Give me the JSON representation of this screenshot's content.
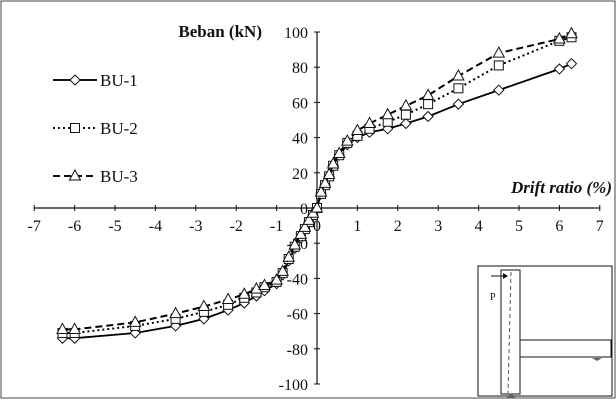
{
  "chart_data": {
    "type": "line",
    "ylabel": "Beban (kN)",
    "xlabel": "Drift ratio (%)",
    "xlim": [
      -7,
      7
    ],
    "ylim": [
      -100,
      100
    ],
    "xticks": [
      -7,
      -6,
      -5,
      -4,
      -3,
      -2,
      -1,
      0,
      1,
      2,
      3,
      4,
      5,
      6,
      7
    ],
    "yticks": [
      -100,
      -80,
      -60,
      -40,
      -20,
      0,
      20,
      40,
      60,
      80,
      100
    ],
    "tick_labels_x": [
      "-7",
      "-6",
      "-5",
      "-4",
      "-3",
      "-2",
      "-1",
      "0",
      "1",
      "2",
      "3",
      "4",
      "5",
      "6",
      "7"
    ],
    "tick_labels_y": [
      "-100",
      "-80",
      "-60",
      "-40",
      "-20",
      "0",
      "20",
      "40",
      "60",
      "80",
      "100"
    ],
    "grid": false,
    "legend_position": "left",
    "series": [
      {
        "name": "BU-1",
        "color": "#000000",
        "line_style": "solid",
        "marker": "diamond",
        "x": [
          -6.3,
          -6.0,
          -4.5,
          -3.5,
          -2.8,
          -2.2,
          -1.8,
          -1.5,
          -1.3,
          -1.0,
          -0.85,
          -0.7,
          -0.55,
          -0.4,
          -0.3,
          -0.2,
          -0.1,
          0,
          0.1,
          0.2,
          0.3,
          0.4,
          0.55,
          0.75,
          1.0,
          1.3,
          1.75,
          2.2,
          2.75,
          3.5,
          4.5,
          6.0,
          6.3
        ],
        "y": [
          -74,
          -74,
          -71,
          -67,
          -63,
          -58,
          -54,
          -50,
          -47,
          -43,
          -38,
          -30,
          -23,
          -17,
          -12,
          -8,
          -4,
          0,
          8,
          13,
          18,
          24,
          30,
          36,
          40,
          43,
          45,
          48,
          52,
          59,
          67,
          79,
          82
        ]
      },
      {
        "name": "BU-2",
        "color": "#000000",
        "line_style": "dotted",
        "marker": "square",
        "x": [
          -6.3,
          -6.0,
          -4.5,
          -3.5,
          -2.8,
          -2.2,
          -1.8,
          -1.5,
          -1.3,
          -1.0,
          -0.85,
          -0.7,
          -0.55,
          -0.4,
          -0.3,
          -0.2,
          -0.1,
          0,
          0.1,
          0.2,
          0.3,
          0.4,
          0.55,
          0.75,
          1.0,
          1.3,
          1.75,
          2.2,
          2.75,
          3.5,
          4.5,
          6.0,
          6.3
        ],
        "y": [
          -71,
          -71,
          -67,
          -63,
          -59,
          -55,
          -51,
          -48,
          -45,
          -42,
          -37,
          -29,
          -22,
          -16,
          -12,
          -8,
          -4,
          0,
          8,
          13,
          18,
          24,
          30,
          37,
          41,
          45,
          49,
          53,
          59,
          68,
          81,
          95,
          97
        ]
      },
      {
        "name": "BU-3",
        "color": "#000000",
        "line_style": "dashed",
        "marker": "triangle",
        "x": [
          -6.3,
          -6.0,
          -4.5,
          -3.5,
          -2.8,
          -2.2,
          -1.8,
          -1.5,
          -1.3,
          -1.0,
          -0.85,
          -0.7,
          -0.55,
          -0.4,
          -0.3,
          -0.2,
          -0.1,
          0,
          0.1,
          0.2,
          0.3,
          0.4,
          0.55,
          0.75,
          1.0,
          1.3,
          1.75,
          2.2,
          2.75,
          3.5,
          4.5,
          6.0,
          6.3
        ],
        "y": [
          -69,
          -69,
          -65,
          -60,
          -56,
          -52,
          -49,
          -46,
          -44,
          -41,
          -36,
          -28,
          -21,
          -15,
          -11,
          -7,
          -3,
          0,
          9,
          14,
          19,
          25,
          31,
          38,
          44,
          48,
          53,
          58,
          64,
          75,
          88,
          96,
          99
        ]
      }
    ]
  }
}
